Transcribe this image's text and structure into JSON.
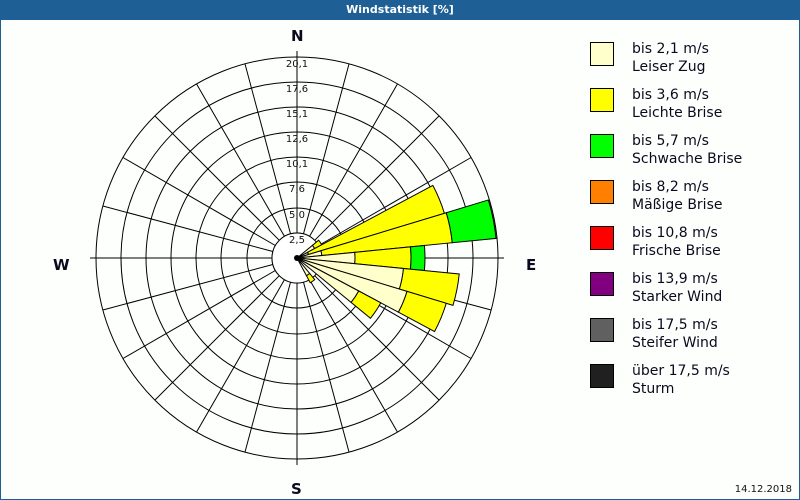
{
  "title": "Windstatistik [%]",
  "date": "14.12.2018",
  "compass": {
    "n": "N",
    "e": "E",
    "s": "S",
    "w": "W"
  },
  "legend": [
    {
      "range": "bis 2,1 m/s",
      "name": "Leiser Zug",
      "color": "#ffffcc"
    },
    {
      "range": "bis 3,6 m/s",
      "name": "Leichte Brise",
      "color": "#ffff00"
    },
    {
      "range": "bis 5,7 m/s",
      "name": "Schwache Brise",
      "color": "#00ff00"
    },
    {
      "range": "bis 8,2 m/s",
      "name": "Mäßige Brise",
      "color": "#ff8000"
    },
    {
      "range": "bis 10,8 m/s",
      "name": "Frische Brise",
      "color": "#ff0000"
    },
    {
      "range": "bis 13,9 m/s",
      "name": "Starker Wind",
      "color": "#800080"
    },
    {
      "range": "bis 17,5 m/s",
      "name": "Steifer Wind",
      "color": "#606060"
    },
    {
      "range": "über 17,5 m/s",
      "name": "Sturm",
      "color": "#202020"
    }
  ],
  "chart_data": {
    "type": "wind-rose",
    "title": "Windstatistik [%]",
    "unit": "%",
    "rmax": 20.1,
    "ring_labels": [
      "2,5",
      "5,0",
      "7,6",
      "10,1",
      "12,6",
      "15,1",
      "17,6",
      "20,1"
    ],
    "ring_values": [
      2.5,
      5.0,
      7.6,
      10.1,
      12.6,
      15.1,
      17.6,
      20.1
    ],
    "sector_width_deg": 11.25,
    "series_names": [
      "bis 2,1 m/s",
      "bis 3,6 m/s",
      "bis 5,7 m/s",
      "bis 8,2 m/s",
      "bis 10,8 m/s",
      "bis 13,9 m/s",
      "bis 17,5 m/s",
      "über 17,5 m/s"
    ],
    "sectors": [
      {
        "bearing": 56.25,
        "values": [
          2.0,
          0.8,
          0,
          0,
          0,
          0,
          0,
          0
        ]
      },
      {
        "bearing": 67.5,
        "values": [
          1.2,
          14.2,
          0,
          0,
          0,
          0,
          0,
          0
        ]
      },
      {
        "bearing": 78.75,
        "values": [
          2.5,
          13.1,
          4.4,
          0,
          0,
          0,
          0,
          0
        ]
      },
      {
        "bearing": 90,
        "values": [
          5.8,
          5.6,
          1.4,
          0,
          0,
          0,
          0,
          0
        ]
      },
      {
        "bearing": 101.25,
        "values": [
          10.7,
          5.6,
          0,
          0,
          0,
          0,
          0,
          0
        ]
      },
      {
        "bearing": 112.5,
        "values": [
          11.5,
          4.1,
          0,
          0,
          0,
          0,
          0,
          0
        ]
      },
      {
        "bearing": 123.75,
        "values": [
          7.0,
          2.5,
          0,
          0,
          0,
          0,
          0,
          0
        ]
      },
      {
        "bearing": 146.25,
        "values": [
          2.0,
          0.8,
          0,
          0,
          0,
          0,
          0,
          0
        ]
      }
    ]
  }
}
